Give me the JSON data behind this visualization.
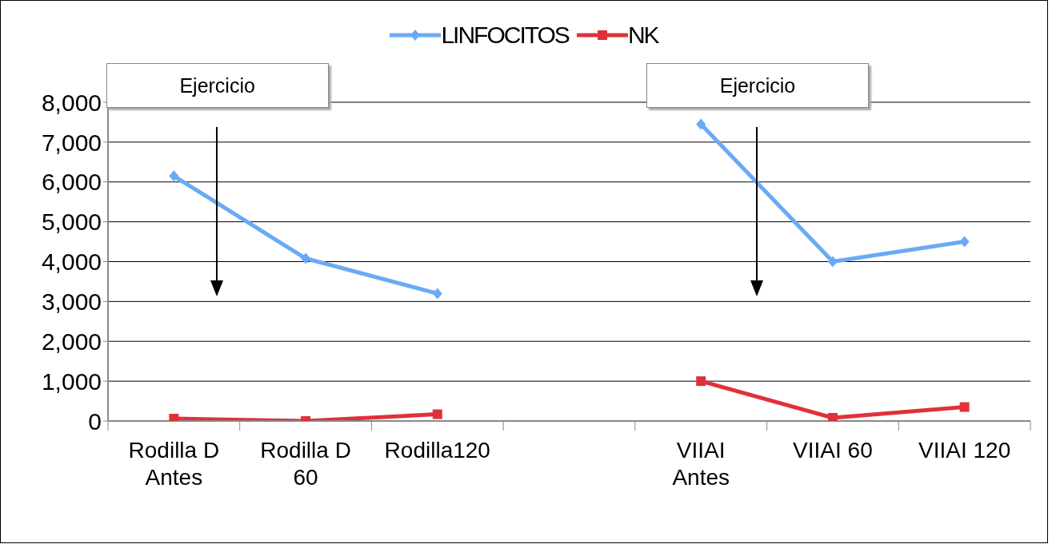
{
  "chart_data": {
    "type": "line",
    "categories": [
      "Rodilla D\nAntes",
      "Rodilla D\n60",
      "Rodilla120",
      null,
      "VIIAI\nAntes",
      "VIIAI 60",
      "VIIAI 120"
    ],
    "series": [
      {
        "name": "LINFOCITOS",
        "color": "#6aaaf5",
        "marker": "diamond",
        "values": [
          6150,
          4080,
          3200,
          null,
          7450,
          4000,
          4500
        ]
      },
      {
        "name": "NK",
        "color": "#e0313a",
        "marker": "square",
        "values": [
          60,
          0,
          170,
          null,
          1000,
          80,
          350
        ]
      }
    ],
    "ylim": [
      0,
      8000
    ],
    "yticks": [
      {
        "value": 0,
        "label": "0"
      },
      {
        "value": 1000,
        "label": "1,000"
      },
      {
        "value": 2000,
        "label": "2,000"
      },
      {
        "value": 3000,
        "label": "3,000"
      },
      {
        "value": 4000,
        "label": "4,000"
      },
      {
        "value": 5000,
        "label": "5,000"
      },
      {
        "value": 6000,
        "label": "6,000"
      },
      {
        "value": 7000,
        "label": "7,000"
      },
      {
        "value": 8000,
        "label": "8,000"
      }
    ],
    "grid": "y",
    "legend": "top",
    "line_style": "solid",
    "annotations": [
      "Ejercicio",
      "Ejercicio"
    ]
  }
}
